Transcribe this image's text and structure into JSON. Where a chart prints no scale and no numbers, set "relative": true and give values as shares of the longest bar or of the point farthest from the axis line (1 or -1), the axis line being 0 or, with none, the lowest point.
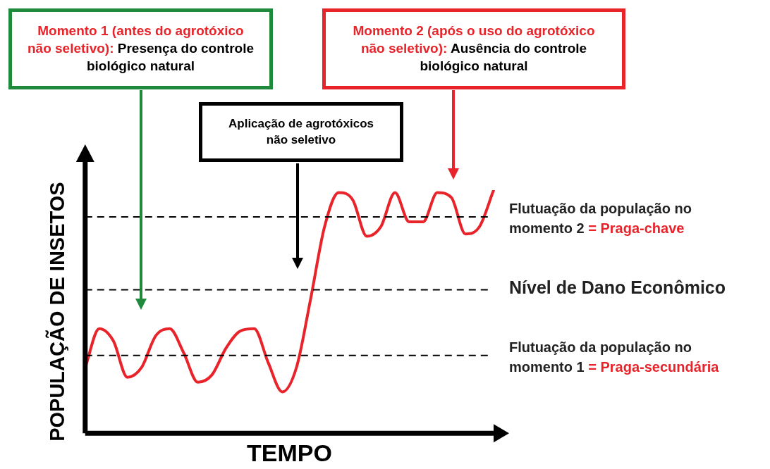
{
  "chart_data": {
    "type": "line",
    "relative": true,
    "xlabel": "TEMPO",
    "ylabel": "POPULAÇÃO DE INSETOS",
    "categories": [
      null,
      null,
      null,
      null,
      null,
      null,
      null,
      null,
      null,
      null,
      null,
      null,
      null,
      null,
      null,
      null,
      null,
      null,
      null,
      null,
      null,
      null,
      null,
      null,
      null,
      null,
      null,
      null,
      null,
      null
    ],
    "series": [
      {
        "color": "#e8232a",
        "values": [
          0.27,
          0.43,
          0.38,
          0.23,
          0.27,
          0.4,
          0.43,
          0.33,
          0.21,
          0.24,
          0.35,
          0.42,
          0.43,
          0.29,
          0.17,
          0.27,
          0.55,
          0.85,
          0.99,
          0.96,
          0.81,
          0.85,
          0.99,
          0.87,
          0.87,
          0.99,
          0.97,
          0.82,
          0.85,
          1.0
        ]
      }
    ],
    "marker": "none",
    "line_style": "solid",
    "grid": false,
    "legend": false,
    "ref_lines": [
      {
        "axis": "y",
        "value": 0.89,
        "label": "Flutuação da população no momento 2 = Praga-chave",
        "line_style": "dashed"
      },
      {
        "axis": "y",
        "value": 0.59,
        "label": "Nível de Dano Econômico",
        "line_style": "dashed"
      },
      {
        "axis": "y",
        "value": 0.32,
        "label": "Flutuação da população no momento 1 = Praga-secundária",
        "line_style": "dashed"
      }
    ],
    "annotations": [
      "Momento 1 (antes do agrotóxico não seletivo):",
      "Presença do controle biológico natural",
      "Momento 2 (após o uso do agrotóxico não seletivo):",
      "Ausência do controle biológico natural",
      "Aplicação de agrotóxicos não seletivo"
    ]
  }
}
